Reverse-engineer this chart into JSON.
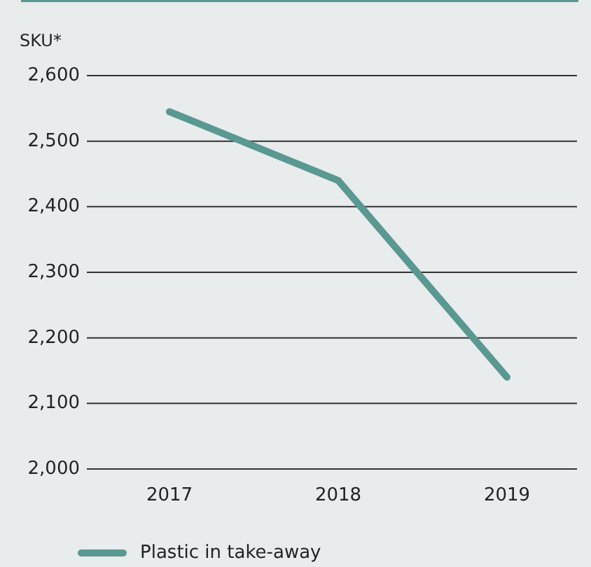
{
  "chart_data": {
    "type": "line",
    "ylabel": "SKU*",
    "categories": [
      "2017",
      "2018",
      "2019"
    ],
    "series": [
      {
        "name": "Plastic in take-away",
        "color": "#5a9892",
        "values": [
          2545,
          2440,
          2140
        ]
      }
    ],
    "ylim": [
      2000,
      2600
    ],
    "yticks": [
      {
        "value": 2000,
        "label": "2,000"
      },
      {
        "value": 2100,
        "label": "2,100"
      },
      {
        "value": 2200,
        "label": "2,200"
      },
      {
        "value": 2300,
        "label": "2,300"
      },
      {
        "value": 2400,
        "label": "2,400"
      },
      {
        "value": 2500,
        "label": "2,500"
      },
      {
        "value": 2600,
        "label": "2,600"
      }
    ],
    "grid": "y",
    "legend": "bottom left",
    "marker": "none",
    "line_style": "solid"
  }
}
